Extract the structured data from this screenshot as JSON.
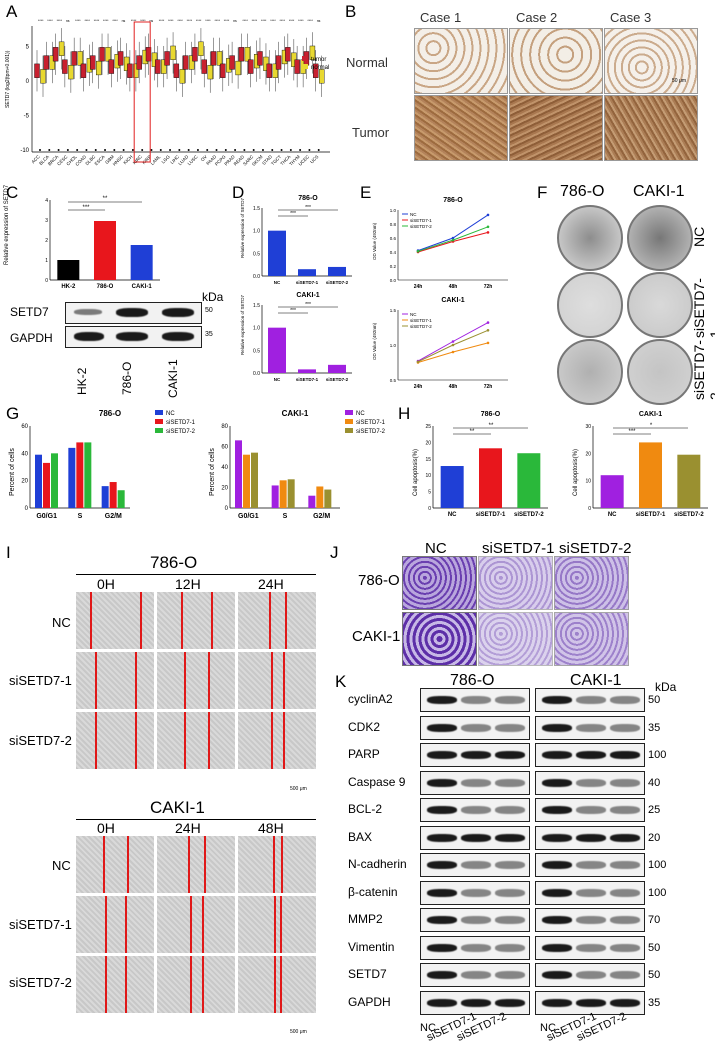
{
  "panels": {
    "A": "A",
    "B": "B",
    "C": "C",
    "D": "D",
    "E": "E",
    "F": "F",
    "G": "G",
    "H": "H",
    "I": "I",
    "J": "J",
    "K": "K"
  },
  "panelA": {
    "ylabel": "SETD7 (log2(tpm+0.001))",
    "legend": [
      "tumor",
      "normal"
    ],
    "colors": {
      "tumor": "#c8202f",
      "normal": "#e8d830"
    },
    "cancers": [
      "ACC",
      "BLCA",
      "BRCA",
      "CESC",
      "CHOL",
      "COAD",
      "DLBC",
      "ESCA",
      "GBM",
      "HNSC",
      "KICH",
      "KIRC",
      "KIRP",
      "LAML",
      "LGG",
      "LIHC",
      "LUAD",
      "LUSC",
      "OV",
      "PAAD",
      "PCPG",
      "PRAD",
      "READ",
      "SARC",
      "SKCM",
      "STAD",
      "TGCT",
      "THCA",
      "THYM",
      "UCEC",
      "UCS"
    ],
    "yticks": [
      "5",
      "0",
      "-5",
      "-10"
    ],
    "sig": [
      "****",
      "****",
      "****",
      "ns",
      "****",
      "****",
      "****",
      "****",
      "****",
      "ns",
      "****",
      "****",
      "ns",
      "****",
      "****",
      "****",
      "****",
      "****",
      "****",
      "****",
      "****",
      "ns",
      "****",
      "****",
      "****",
      "****",
      "****",
      "****",
      "****",
      "****",
      "ns"
    ]
  },
  "panelB": {
    "cols": [
      "Case 1",
      "Case 2",
      "Case 3"
    ],
    "rows": [
      "Normal",
      "Tumor"
    ],
    "scale": "50 μm"
  },
  "panelC": {
    "ylabel": "Relative expression of SETD7",
    "chart_data": {
      "type": "bar",
      "categories": [
        "HK-2",
        "786-O",
        "CAKI-1"
      ],
      "values": [
        1.0,
        2.95,
        1.75
      ],
      "ylim": [
        0,
        4
      ],
      "colors": [
        "#000000",
        "#e8161c",
        "#1f3fd6"
      ]
    },
    "sig": [
      "***",
      "**"
    ],
    "blot_labels": [
      "SETD7",
      "GAPDH"
    ],
    "kda_title": "kDa",
    "kda": [
      "50",
      "35"
    ],
    "lanes": [
      "HK-2",
      "786-O",
      "CAKI-1"
    ]
  },
  "panelD": {
    "top": {
      "title": "786-O",
      "ylabel": "Relative expression of SETD7",
      "chart_data": {
        "type": "bar",
        "categories": [
          "NC",
          "siSETD7-1",
          "siSETD7-2"
        ],
        "values": [
          1.0,
          0.15,
          0.2
        ],
        "ylim": [
          0,
          1.5
        ],
        "color": "#1f3fd6"
      }
    },
    "bottom": {
      "title": "CAKI-1",
      "ylabel": "Relative expression of SETD7",
      "chart_data": {
        "type": "bar",
        "categories": [
          "NC",
          "siSETD7-1",
          "siSETD7-2"
        ],
        "values": [
          1.0,
          0.08,
          0.18
        ],
        "ylim": [
          0,
          1.5
        ],
        "color": "#a020e0"
      }
    },
    "yticks": [
      "1.5",
      "1.0",
      "0.5",
      "0.0"
    ],
    "sig": "***"
  },
  "panelE": {
    "top": {
      "title": "786-O",
      "ylabel": "OD Value (492nm)",
      "chart_data": {
        "type": "line",
        "x": [
          "24h",
          "48h",
          "72h"
        ],
        "series": [
          {
            "name": "NC",
            "values": [
              0.42,
              0.6,
              0.93
            ],
            "color": "#1f3fd6"
          },
          {
            "name": "siSETD7-1",
            "values": [
              0.4,
              0.55,
              0.68
            ],
            "color": "#e8161c"
          },
          {
            "name": "siSETD7-2",
            "values": [
              0.41,
              0.57,
              0.76
            ],
            "color": "#2ab83a"
          }
        ],
        "ylim": [
          0,
          1.0
        ]
      },
      "yticks": [
        "1.0",
        "0.8",
        "0.6",
        "0.4",
        "0.2",
        "0.0"
      ]
    },
    "bottom": {
      "title": "CAKI-1",
      "ylabel": "OD Value (492nm)",
      "chart_data": {
        "type": "line",
        "x": [
          "24h",
          "48h",
          "72h"
        ],
        "series": [
          {
            "name": "NC",
            "values": [
              0.77,
              1.05,
              1.32
            ],
            "color": "#a020e0"
          },
          {
            "name": "siSETD7-1",
            "values": [
              0.75,
              0.9,
              1.03
            ],
            "color": "#f08a10"
          },
          {
            "name": "siSETD7-2",
            "values": [
              0.76,
              1.0,
              1.21
            ],
            "color": "#9a9030"
          }
        ],
        "ylim": [
          0.5,
          1.5
        ]
      },
      "yticks": [
        "1.5",
        "1.0",
        "0.5"
      ]
    }
  },
  "panelF": {
    "cols": [
      "786-O",
      "CAKI-1"
    ],
    "rows": [
      "NC",
      "siSETD7-1",
      "siSETD7-2"
    ]
  },
  "panelG": {
    "left": {
      "title": "786-O",
      "ylabel": "Percent of cells",
      "chart_data": {
        "type": "bar",
        "categories": [
          "G0/G1",
          "S",
          "G2/M"
        ],
        "series": [
          {
            "name": "NC",
            "values": [
              39,
              44,
              16
            ],
            "color": "#1f3fd6"
          },
          {
            "name": "siSETD7-1",
            "values": [
              33,
              48,
              19
            ],
            "color": "#e8161c"
          },
          {
            "name": "siSETD7-2",
            "values": [
              40,
              48,
              13
            ],
            "color": "#2ab83a"
          }
        ],
        "ylim": [
          0,
          60
        ]
      },
      "yticks": [
        "60",
        "40",
        "20",
        "0"
      ]
    },
    "right": {
      "title": "CAKI-1",
      "ylabel": "Percent of cells",
      "chart_data": {
        "type": "bar",
        "categories": [
          "G0/G1",
          "S",
          "G2/M"
        ],
        "series": [
          {
            "name": "NC",
            "values": [
              66,
              22,
              12
            ],
            "color": "#a020e0"
          },
          {
            "name": "siSETD7-1",
            "values": [
              52,
              27,
              21
            ],
            "color": "#f08a10"
          },
          {
            "name": "siSETD7-2",
            "values": [
              54,
              28,
              18
            ],
            "color": "#9a9030"
          }
        ],
        "ylim": [
          0,
          80
        ]
      },
      "yticks": [
        "80",
        "60",
        "40",
        "20",
        "0"
      ]
    }
  },
  "panelH": {
    "left": {
      "title": "786-O",
      "ylabel": "Cell apoptosis(%)",
      "chart_data": {
        "type": "bar",
        "categories": [
          "NC",
          "siSETD7-1",
          "siSETD7-2"
        ],
        "values": [
          12.8,
          18.2,
          16.7
        ],
        "ylim": [
          0,
          25
        ],
        "colors": [
          "#1f3fd6",
          "#e8161c",
          "#2ab83a"
        ]
      },
      "yticks": [
        "25",
        "20",
        "15",
        "10",
        "5",
        "0"
      ],
      "sig": [
        "**",
        "**"
      ]
    },
    "right": {
      "title": "CAKI-1",
      "ylabel": "Cell apoptosis(%)",
      "chart_data": {
        "type": "bar",
        "categories": [
          "NC",
          "siSETD7-1",
          "siSETD7-2"
        ],
        "values": [
          12,
          24,
          19.5
        ],
        "ylim": [
          0,
          30
        ],
        "colors": [
          "#a020e0",
          "#f08a10",
          "#9a9030"
        ]
      },
      "yticks": [
        "30",
        "20",
        "10",
        "0"
      ],
      "sig": [
        "***",
        "*"
      ]
    }
  },
  "panelI": {
    "top": {
      "title": "786-O",
      "times": [
        "0H",
        "12H",
        "24H"
      ]
    },
    "bottom": {
      "title": "CAKI-1",
      "times": [
        "0H",
        "24H",
        "48H"
      ]
    },
    "rows": [
      "NC",
      "siSETD7-1",
      "siSETD7-2"
    ],
    "scale": "500 μm"
  },
  "panelJ": {
    "cols": [
      "NC",
      "siSETD7-1",
      "siSETD7-2"
    ],
    "rows": [
      "786-O",
      "CAKI-1"
    ]
  },
  "panelK": {
    "cells": [
      "786-O",
      "CAKI-1"
    ],
    "kda_title": "kDa",
    "proteins": [
      {
        "name": "cyclinA2",
        "kda": "50"
      },
      {
        "name": "CDK2",
        "kda": "35"
      },
      {
        "name": "PARP",
        "kda": "100"
      },
      {
        "name": "Caspase 9",
        "kda": "40"
      },
      {
        "name": "BCL-2",
        "kda": "25"
      },
      {
        "name": "BAX",
        "kda": "20"
      },
      {
        "name": "N-cadherin",
        "kda": "100"
      },
      {
        "name": "β-catenin",
        "kda": "100"
      },
      {
        "name": "MMP2",
        "kda": "70"
      },
      {
        "name": "Vimentin",
        "kda": "50"
      },
      {
        "name": "SETD7",
        "kda": "50"
      },
      {
        "name": "GAPDH",
        "kda": "35"
      }
    ],
    "lanes": [
      "NC",
      "siSETD7-1",
      "siSETD7-2"
    ]
  }
}
